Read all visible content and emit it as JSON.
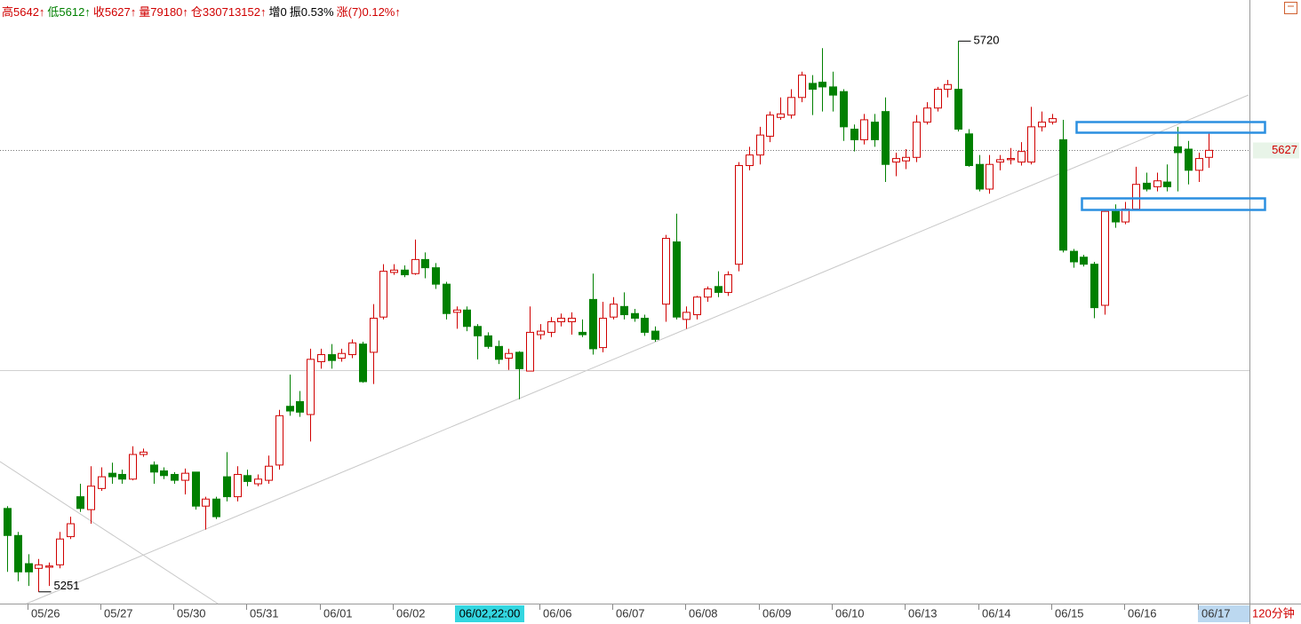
{
  "chart_data": {
    "type": "candlestick",
    "header": [
      {
        "text": "高5642↑",
        "color": "#d00000"
      },
      {
        "text": "低5612↑",
        "color": "#008000"
      },
      {
        "text": "收5627↑",
        "color": "#d00000"
      },
      {
        "text": "量79180↑",
        "color": "#d00000"
      },
      {
        "text": "仓330713152↑",
        "color": "#d00000"
      },
      {
        "text": "增0",
        "color": "#000000"
      },
      {
        "text": "振0.53%",
        "color": "#000000"
      },
      {
        "text": "涨(7)0.12%↑",
        "color": "#d00000"
      }
    ],
    "categories": [
      null,
      null,
      "05/26",
      null,
      null,
      null,
      null,
      null,
      null,
      "05/27",
      null,
      null,
      null,
      null,
      null,
      null,
      "05/30",
      null,
      null,
      null,
      null,
      null,
      null,
      "05/31",
      null,
      null,
      null,
      null,
      null,
      null,
      "06/01",
      null,
      null,
      null,
      null,
      null,
      null,
      "06/02",
      null,
      null,
      null,
      null,
      null,
      null,
      null,
      null,
      "06/02,22:00",
      null,
      null,
      null,
      null,
      "06/06",
      null,
      null,
      null,
      null,
      null,
      null,
      "06/07",
      null,
      null,
      null,
      null,
      null,
      null,
      "06/08",
      null,
      null,
      null,
      null,
      null,
      null,
      "06/09",
      null,
      null,
      null,
      null,
      null,
      null,
      "06/10",
      null,
      null,
      null,
      null,
      null,
      null,
      "06/13",
      null,
      null,
      null,
      null,
      null,
      null,
      "06/14",
      null,
      null,
      null,
      null,
      null,
      null,
      "06/15",
      null,
      null,
      null,
      null,
      null,
      null,
      "06/16",
      null,
      null,
      null,
      null,
      null,
      null,
      "06/17",
      null
    ],
    "cursor": 46,
    "open": [
      5322,
      5299,
      5275,
      5271,
      5272,
      5274,
      5298,
      5332,
      5321,
      5339,
      5352,
      5351,
      5347,
      5368,
      5359,
      5354,
      5351,
      5346,
      5353,
      5324,
      5330,
      5349,
      5332,
      5350,
      5343,
      5346,
      5359,
      5409,
      5413,
      5402,
      5447,
      5453,
      5450,
      5453,
      5462,
      5455,
      5485,
      5523,
      5525,
      5522,
      5534,
      5527,
      5513,
      5489,
      5491,
      5477,
      5469,
      5460,
      5450,
      5455,
      5439,
      5470,
      5472,
      5481,
      5481,
      5472,
      5500,
      5459,
      5485,
      5494,
      5488,
      5484,
      5473,
      5496,
      5549,
      5483,
      5487,
      5502,
      5511,
      5506,
      5530,
      5614,
      5623,
      5639,
      5655,
      5657,
      5672,
      5684,
      5685,
      5681,
      5677,
      5645,
      5636,
      5651,
      5660,
      5617,
      5618,
      5621,
      5651,
      5663,
      5679,
      5679,
      5641,
      5615,
      5594,
      5617,
      5619,
      5617,
      5617,
      5647,
      5651,
      5636,
      5541,
      5536,
      5530,
      5495,
      5575,
      5566,
      5577,
      5599,
      5596,
      5600,
      5630,
      5628,
      5610,
      5621
    ],
    "high": [
      5324,
      5302,
      5283,
      5279,
      5276,
      5302,
      5315,
      5343,
      5358,
      5357,
      5361,
      5355,
      5375,
      5373,
      5362,
      5357,
      5353,
      5356,
      5353,
      5332,
      5332,
      5370,
      5358,
      5355,
      5351,
      5367,
      5406,
      5436,
      5422,
      5458,
      5458,
      5462,
      5458,
      5466,
      5464,
      5496,
      5530,
      5530,
      5529,
      5551,
      5540,
      5531,
      5515,
      5494,
      5494,
      5479,
      5472,
      5465,
      5458,
      5456,
      5494,
      5479,
      5485,
      5488,
      5489,
      5483,
      5522,
      5498,
      5502,
      5506,
      5492,
      5487,
      5477,
      5555,
      5573,
      5494,
      5503,
      5511,
      5524,
      5524,
      5617,
      5630,
      5647,
      5660,
      5672,
      5679,
      5694,
      5691,
      5714,
      5694,
      5679,
      5649,
      5658,
      5658,
      5672,
      5625,
      5628,
      5657,
      5668,
      5681,
      5687,
      5720,
      5645,
      5623,
      5623,
      5623,
      5629,
      5634,
      5664,
      5660,
      5658,
      5653,
      5543,
      5538,
      5532,
      5577,
      5581,
      5583,
      5613,
      5608,
      5608,
      5615,
      5647,
      5635,
      5625,
      5642
    ],
    "low": [
      5268,
      5260,
      5256,
      5251,
      5256,
      5271,
      5296,
      5319,
      5309,
      5337,
      5343,
      5343,
      5346,
      5366,
      5343,
      5347,
      5343,
      5334,
      5321,
      5304,
      5313,
      5328,
      5328,
      5341,
      5341,
      5343,
      5355,
      5401,
      5400,
      5379,
      5441,
      5441,
      5447,
      5450,
      5429,
      5428,
      5483,
      5521,
      5519,
      5521,
      5518,
      5509,
      5483,
      5475,
      5473,
      5449,
      5458,
      5445,
      5440,
      5415,
      5439,
      5466,
      5468,
      5477,
      5470,
      5468,
      5453,
      5455,
      5483,
      5483,
      5481,
      5469,
      5464,
      5481,
      5483,
      5475,
      5483,
      5498,
      5502,
      5503,
      5524,
      5610,
      5615,
      5634,
      5653,
      5654,
      5668,
      5657,
      5660,
      5660,
      5635,
      5626,
      5632,
      5630,
      5600,
      5605,
      5611,
      5617,
      5649,
      5660,
      5672,
      5643,
      5613,
      5592,
      5590,
      5610,
      5615,
      5614,
      5615,
      5643,
      5649,
      5540,
      5527,
      5528,
      5484,
      5487,
      5561,
      5564,
      5576,
      5592,
      5592,
      5592,
      5592,
      5598,
      5600,
      5612
    ],
    "close": [
      5299,
      5268,
      5268,
      5274,
      5273,
      5296,
      5309,
      5322,
      5341,
      5349,
      5349,
      5347,
      5368,
      5370,
      5353,
      5350,
      5346,
      5352,
      5324,
      5330,
      5315,
      5332,
      5351,
      5345,
      5347,
      5358,
      5401,
      5405,
      5404,
      5449,
      5453,
      5448,
      5454,
      5463,
      5430,
      5484,
      5524,
      5525,
      5521,
      5534,
      5527,
      5513,
      5488,
      5491,
      5477,
      5469,
      5460,
      5449,
      5454,
      5441,
      5472,
      5473,
      5481,
      5484,
      5484,
      5470,
      5458,
      5484,
      5496,
      5487,
      5484,
      5472,
      5466,
      5552,
      5485,
      5489,
      5502,
      5509,
      5506,
      5521,
      5614,
      5623,
      5640,
      5657,
      5658,
      5672,
      5691,
      5679,
      5681,
      5674,
      5647,
      5636,
      5653,
      5636,
      5615,
      5620,
      5621,
      5651,
      5663,
      5679,
      5683,
      5645,
      5614,
      5594,
      5615,
      5619,
      5620,
      5626,
      5647,
      5651,
      5654,
      5542,
      5532,
      5530,
      5493,
      5575,
      5566,
      5577,
      5598,
      5594,
      5601,
      5596,
      5625,
      5610,
      5620,
      5627
    ],
    "up_color": "#d00000",
    "down_color": "#008000",
    "ylim": [
      5241,
      5755
    ],
    "last_price": 5627,
    "hline": 5440,
    "period": "120分钟"
  }
}
